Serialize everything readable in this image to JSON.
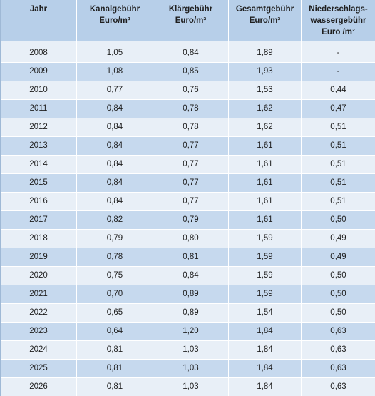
{
  "table": {
    "headers": [
      [
        "Jahr"
      ],
      [
        "Kanalgebühr",
        "Euro/m³"
      ],
      [
        "Klärgebühr",
        "Euro/m³"
      ],
      [
        "Gesamtgebühr",
        "Euro/m³"
      ],
      [
        "Niederschlags-",
        "wassergebühr",
        "Euro /m²"
      ]
    ],
    "rows": [
      [
        "2008",
        "1,05",
        "0,84",
        "1,89",
        "-"
      ],
      [
        "2009",
        "1,08",
        "0,85",
        "1,93",
        "-"
      ],
      [
        "2010",
        "0,77",
        "0,76",
        "1,53",
        "0,44"
      ],
      [
        "2011",
        "0,84",
        "0,78",
        "1,62",
        "0,47"
      ],
      [
        "2012",
        "0,84",
        "0,78",
        "1,62",
        "0,51"
      ],
      [
        "2013",
        "0,84",
        "0,77",
        "1,61",
        "0,51"
      ],
      [
        "2014",
        "0,84",
        "0,77",
        "1,61",
        "0,51"
      ],
      [
        "2015",
        "0,84",
        "0,77",
        "1,61",
        "0,51"
      ],
      [
        "2016",
        "0,84",
        "0,77",
        "1,61",
        "0,51"
      ],
      [
        "2017",
        "0,82",
        "0,79",
        "1,61",
        "0,50"
      ],
      [
        "2018",
        "0,79",
        "0,80",
        "1,59",
        "0,49"
      ],
      [
        "2019",
        "0,78",
        "0,81",
        "1,59",
        "0,49"
      ],
      [
        "2020",
        "0,75",
        "0,84",
        "1,59",
        "0,50"
      ],
      [
        "2021",
        "0,70",
        "0,89",
        "1,59",
        "0,50"
      ],
      [
        "2022",
        "0,65",
        "0,89",
        "1,54",
        "0,50"
      ],
      [
        "2023",
        "0,64",
        "1,20",
        "1,84",
        "0,63"
      ],
      [
        "2024",
        "0,81",
        "1,03",
        "1,84",
        "0,63"
      ],
      [
        "2025",
        "0,81",
        "1,03",
        "1,84",
        "0,63"
      ],
      [
        "2026",
        "0,81",
        "1,03",
        "1,84",
        "0,63"
      ]
    ]
  }
}
